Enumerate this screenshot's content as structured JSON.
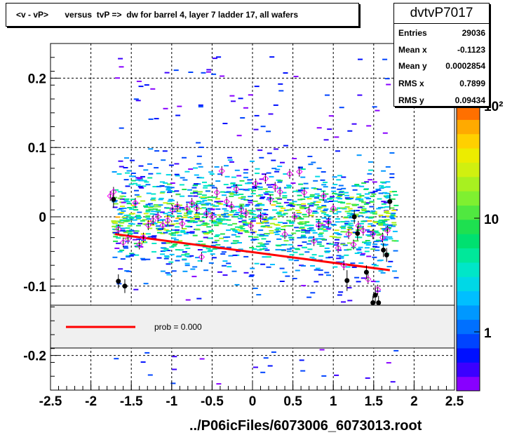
{
  "title": "<v - vP>       versus  tvP =>  dw for barrel 4, layer 7 ladder 17, all wafers",
  "stats": {
    "name": "dvtvP7017",
    "rows": [
      {
        "label": "Entries",
        "value": "29036"
      },
      {
        "label": "Mean x",
        "value": "-0.1123"
      },
      {
        "label": "Mean y",
        "value": "0.0002854"
      },
      {
        "label": "RMS x",
        "value": "0.7899"
      },
      {
        "label": "RMS y",
        "value": "0.09434"
      }
    ]
  },
  "footer": "../P06icFiles/6073006_6073013.root",
  "legend": {
    "entry": "prob = 0.000",
    "color": "#ff0000"
  },
  "colorbar": {
    "labels": [
      "1",
      "10",
      "10²"
    ],
    "colors": [
      "#8800ff",
      "#3b00ff",
      "#0010ff",
      "#0044ff",
      "#0070ff",
      "#0098ff",
      "#00bfff",
      "#00d8e6",
      "#00e6c8",
      "#00e89a",
      "#00e070",
      "#1ee050",
      "#50e840",
      "#7ff030",
      "#a8f020",
      "#d0f010",
      "#ecec00",
      "#ffd000",
      "#ffaa00",
      "#ff7000"
    ]
  },
  "chart_data": {
    "type": "scatter",
    "title": "<v - vP>       versus  tvP =>  dw for barrel 4, layer 7 ladder 17, all wafers",
    "xlabel": "",
    "ylabel": "",
    "xlim": [
      -2.5,
      2.5
    ],
    "ylim": [
      -0.25,
      0.25
    ],
    "x_ticks": [
      "-2.5",
      "-2",
      "-1.5",
      "-1",
      "-0.5",
      "0",
      "0.5",
      "1",
      "1.5",
      "2",
      "2.5"
    ],
    "y_ticks": [
      "-0.2",
      "-0.1",
      "0",
      "0.1",
      "0.2"
    ],
    "grid": true,
    "z_scale": "log",
    "fit_line": {
      "x": [
        -1.7,
        1.7
      ],
      "y": [
        -0.025,
        -0.077
      ],
      "color": "#ff0000"
    },
    "profile_black": [
      {
        "x": -1.72,
        "y": 0.025,
        "err": 0.012
      },
      {
        "x": -1.66,
        "y": -0.093,
        "err": 0.01
      },
      {
        "x": -1.58,
        "y": -0.1,
        "err": 0.01
      },
      {
        "x": 1.17,
        "y": -0.092,
        "err": 0.015
      },
      {
        "x": 1.26,
        "y": 0.0,
        "err": 0.01
      },
      {
        "x": 1.3,
        "y": -0.024,
        "err": 0.01
      },
      {
        "x": 1.41,
        "y": -0.08,
        "err": 0.01
      },
      {
        "x": 1.52,
        "y": -0.113,
        "err": 0.012
      },
      {
        "x": 1.56,
        "y": -0.124,
        "err": 0.01
      },
      {
        "x": 1.62,
        "y": -0.048,
        "err": 0.01
      },
      {
        "x": 1.66,
        "y": -0.055,
        "err": 0.01
      },
      {
        "x": 1.7,
        "y": 0.022,
        "err": 0.012
      },
      {
        "x": 1.49,
        "y": -0.124,
        "err": 0.01
      }
    ],
    "profile_magenta": [
      {
        "x": -1.76,
        "y": 0.03
      },
      {
        "x": -1.72,
        "y": 0.036
      },
      {
        "x": -1.66,
        "y": -0.018
      },
      {
        "x": -1.6,
        "y": -0.037
      },
      {
        "x": -1.54,
        "y": -0.032
      },
      {
        "x": -1.45,
        "y": 0.02
      },
      {
        "x": -1.4,
        "y": -0.04
      },
      {
        "x": -1.35,
        "y": -0.03
      },
      {
        "x": -1.29,
        "y": -0.012
      },
      {
        "x": -1.23,
        "y": -0.005
      },
      {
        "x": -1.17,
        "y": 0.0
      },
      {
        "x": -1.11,
        "y": -0.012
      },
      {
        "x": -1.05,
        "y": -0.005
      },
      {
        "x": -0.99,
        "y": 0.01
      },
      {
        "x": -0.93,
        "y": 0.015
      },
      {
        "x": -0.87,
        "y": -0.01
      },
      {
        "x": -0.81,
        "y": 0.012
      },
      {
        "x": -0.75,
        "y": 0.02
      },
      {
        "x": -0.69,
        "y": 0.012
      },
      {
        "x": -0.63,
        "y": -0.058
      },
      {
        "x": -0.57,
        "y": 0.005
      },
      {
        "x": -0.5,
        "y": 0.0
      },
      {
        "x": -0.44,
        "y": 0.035
      },
      {
        "x": -0.38,
        "y": 0.066
      },
      {
        "x": -0.32,
        "y": 0.022
      },
      {
        "x": -0.26,
        "y": 0.015
      },
      {
        "x": -0.2,
        "y": 0.04
      },
      {
        "x": -0.14,
        "y": 0.01
      },
      {
        "x": -0.08,
        "y": 0.005
      },
      {
        "x": -0.02,
        "y": -0.013
      },
      {
        "x": 0.04,
        "y": 0.048
      },
      {
        "x": 0.1,
        "y": 0.0
      },
      {
        "x": 0.16,
        "y": 0.055
      },
      {
        "x": 0.22,
        "y": 0.025
      },
      {
        "x": 0.28,
        "y": 0.043
      },
      {
        "x": 0.34,
        "y": 0.036
      },
      {
        "x": 0.4,
        "y": -0.025
      },
      {
        "x": 0.46,
        "y": 0.062
      },
      {
        "x": 0.52,
        "y": 0.0
      },
      {
        "x": 0.58,
        "y": 0.065
      },
      {
        "x": 0.64,
        "y": 0.035
      },
      {
        "x": 0.7,
        "y": 0.008
      },
      {
        "x": 0.76,
        "y": -0.035
      },
      {
        "x": 0.82,
        "y": -0.012
      },
      {
        "x": 0.88,
        "y": 0.03
      },
      {
        "x": 0.94,
        "y": -0.008
      },
      {
        "x": 1.0,
        "y": 0.012
      },
      {
        "x": 1.06,
        "y": -0.045
      },
      {
        "x": 1.13,
        "y": -0.07
      },
      {
        "x": 1.19,
        "y": -0.025
      },
      {
        "x": 1.25,
        "y": -0.04
      },
      {
        "x": 1.31,
        "y": -0.013
      },
      {
        "x": 1.37,
        "y": -0.02
      },
      {
        "x": 1.43,
        "y": -0.09
      },
      {
        "x": 1.49,
        "y": -0.025
      },
      {
        "x": 1.55,
        "y": -0.105
      },
      {
        "x": 1.61,
        "y": -0.03
      },
      {
        "x": 1.67,
        "y": -0.02
      }
    ],
    "density_x_range": [
      -1.75,
      1.75
    ],
    "density_y_core": [
      -0.12,
      0.12
    ]
  }
}
